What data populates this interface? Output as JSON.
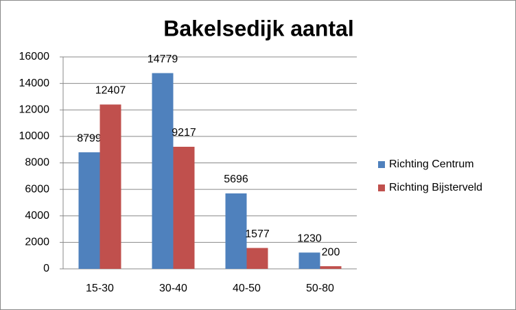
{
  "chart_data": {
    "type": "bar",
    "title": "Bakelsedijk aantal",
    "categories": [
      "15-30",
      "30-40",
      "40-50",
      "50-80"
    ],
    "series": [
      {
        "name": "Richting Centrum",
        "color": "#4f81bd",
        "values": [
          8799,
          14779,
          5696,
          1230
        ]
      },
      {
        "name": "Richting Bijsterveld",
        "color": "#c0504d",
        "values": [
          12407,
          9217,
          1577,
          200
        ]
      }
    ],
    "ylim": [
      0,
      16000
    ],
    "yticks": [
      0,
      2000,
      4000,
      6000,
      8000,
      10000,
      12000,
      14000,
      16000
    ],
    "grid": true,
    "legend": "right"
  }
}
